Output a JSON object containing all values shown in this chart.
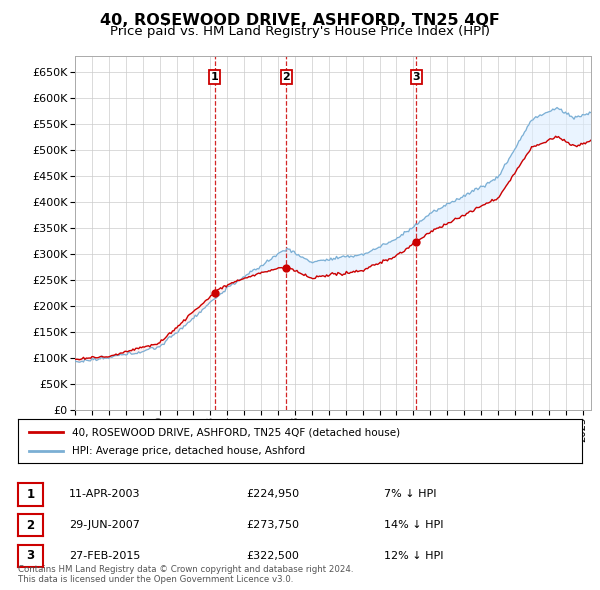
{
  "title": "40, ROSEWOOD DRIVE, ASHFORD, TN25 4QF",
  "subtitle": "Price paid vs. HM Land Registry's House Price Index (HPI)",
  "title_fontsize": 11.5,
  "subtitle_fontsize": 9.5,
  "background_color": "#ffffff",
  "plot_bg_color": "#ffffff",
  "grid_color": "#cccccc",
  "ylim": [
    0,
    680000
  ],
  "yticks": [
    0,
    50000,
    100000,
    150000,
    200000,
    250000,
    300000,
    350000,
    400000,
    450000,
    500000,
    550000,
    600000,
    650000
  ],
  "sale_dates": [
    2003.27,
    2007.49,
    2015.16
  ],
  "sale_prices": [
    224950,
    273750,
    322500
  ],
  "sale_labels": [
    "1",
    "2",
    "3"
  ],
  "vline_color": "#cc0000",
  "dot_color": "#cc0000",
  "house_line_color": "#cc0000",
  "hpi_line_color": "#7bafd4",
  "fill_color": "#ddeeff",
  "legend_house_label": "40, ROSEWOOD DRIVE, ASHFORD, TN25 4QF (detached house)",
  "legend_hpi_label": "HPI: Average price, detached house, Ashford",
  "table_rows": [
    {
      "label": "1",
      "date": "11-APR-2003",
      "price": "£224,950",
      "hpi": "7% ↓ HPI"
    },
    {
      "label": "2",
      "date": "29-JUN-2007",
      "price": "£273,750",
      "hpi": "14% ↓ HPI"
    },
    {
      "label": "3",
      "date": "27-FEB-2015",
      "price": "£322,500",
      "hpi": "12% ↓ HPI"
    }
  ],
  "footnote": "Contains HM Land Registry data © Crown copyright and database right 2024.\nThis data is licensed under the Open Government Licence v3.0.",
  "xmin": 1995,
  "xmax": 2025.5
}
